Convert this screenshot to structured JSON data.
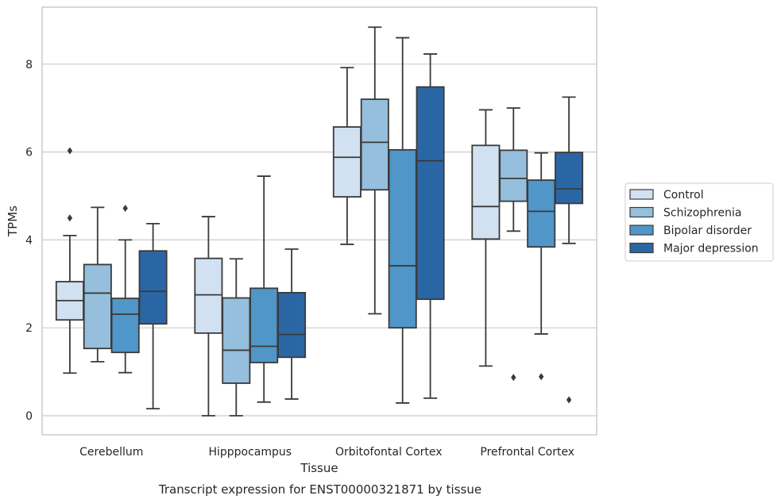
{
  "chart_data": {
    "type": "box",
    "caption": "Transcript expression for ENST00000321871 by tissue",
    "xlabel": "Tissue",
    "ylabel": "TPMs",
    "ylim": [
      -0.4,
      9.3
    ],
    "yticks": [
      0,
      2,
      4,
      6,
      8
    ],
    "grid": true,
    "legend_position": "right",
    "categories": [
      "Cerebellum",
      "Hipppocampus",
      "Orbitofontal Cortex",
      "Prefrontal Cortex"
    ],
    "series": [
      {
        "name": "Control",
        "color": "#d1e1f2",
        "boxes": [
          {
            "whisker_low": 0.97,
            "q1": 2.18,
            "median": 2.62,
            "q3": 3.05,
            "whisker_high": 4.1,
            "outliers": [
              4.5,
              6.03
            ]
          },
          {
            "whisker_low": 0.0,
            "q1": 1.88,
            "median": 2.75,
            "q3": 3.58,
            "whisker_high": 4.53,
            "outliers": []
          },
          {
            "whisker_low": 3.9,
            "q1": 4.98,
            "median": 5.88,
            "q3": 6.57,
            "whisker_high": 7.92,
            "outliers": []
          },
          {
            "whisker_low": 1.13,
            "q1": 4.02,
            "median": 4.76,
            "q3": 6.15,
            "whisker_high": 6.96,
            "outliers": []
          }
        ]
      },
      {
        "name": "Schizophrenia",
        "color": "#95bfdc",
        "boxes": [
          {
            "whisker_low": 1.23,
            "q1": 1.53,
            "median": 2.79,
            "q3": 3.44,
            "whisker_high": 4.74,
            "outliers": []
          },
          {
            "whisker_low": 0.0,
            "q1": 0.74,
            "median": 1.49,
            "q3": 2.68,
            "whisker_high": 3.57,
            "outliers": []
          },
          {
            "whisker_low": 2.32,
            "q1": 5.14,
            "median": 6.22,
            "q3": 7.2,
            "whisker_high": 8.84,
            "outliers": []
          },
          {
            "whisker_low": 4.2,
            "q1": 4.88,
            "median": 5.4,
            "q3": 6.04,
            "whisker_high": 7.0,
            "outliers": [
              0.87
            ]
          }
        ]
      },
      {
        "name": "Bipolar disorder",
        "color": "#5096c8",
        "boxes": [
          {
            "whisker_low": 0.98,
            "q1": 1.44,
            "median": 2.31,
            "q3": 2.67,
            "whisker_high": 4.0,
            "outliers": [
              4.72
            ]
          },
          {
            "whisker_low": 0.31,
            "q1": 1.21,
            "median": 1.58,
            "q3": 2.9,
            "whisker_high": 5.45,
            "outliers": []
          },
          {
            "whisker_low": 0.29,
            "q1": 2.0,
            "median": 3.41,
            "q3": 6.05,
            "whisker_high": 8.6,
            "outliers": []
          },
          {
            "whisker_low": 1.86,
            "q1": 3.84,
            "median": 4.65,
            "q3": 5.36,
            "whisker_high": 5.98,
            "outliers": [
              0.89
            ]
          }
        ]
      },
      {
        "name": "Major depression",
        "color": "#2b66a4",
        "boxes": [
          {
            "whisker_low": 0.16,
            "q1": 2.09,
            "median": 2.83,
            "q3": 3.75,
            "whisker_high": 4.37,
            "outliers": []
          },
          {
            "whisker_low": 0.38,
            "q1": 1.33,
            "median": 1.85,
            "q3": 2.8,
            "whisker_high": 3.79,
            "outliers": []
          },
          {
            "whisker_low": 0.4,
            "q1": 2.65,
            "median": 5.8,
            "q3": 7.48,
            "whisker_high": 8.23,
            "outliers": []
          },
          {
            "whisker_low": 3.92,
            "q1": 4.83,
            "median": 5.16,
            "q3": 5.99,
            "whisker_high": 7.25,
            "outliers": [
              0.36
            ]
          }
        ]
      }
    ]
  }
}
